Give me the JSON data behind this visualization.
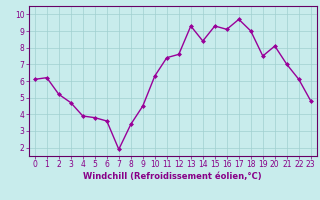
{
  "x": [
    0,
    1,
    2,
    3,
    4,
    5,
    6,
    7,
    8,
    9,
    10,
    11,
    12,
    13,
    14,
    15,
    16,
    17,
    18,
    19,
    20,
    21,
    22,
    23
  ],
  "y": [
    6.1,
    6.2,
    5.2,
    4.7,
    3.9,
    3.8,
    3.6,
    1.9,
    3.4,
    4.5,
    6.3,
    7.4,
    7.6,
    9.3,
    8.4,
    9.3,
    9.1,
    9.7,
    9.0,
    7.5,
    8.1,
    7.0,
    6.1,
    4.8
  ],
  "line_color": "#990099",
  "marker": "D",
  "marker_size": 2,
  "background_color": "#c8ecec",
  "grid_color": "#a0d0d0",
  "xlabel": "Windchill (Refroidissement éolien,°C)",
  "ylabel": "",
  "xlim": [
    -0.5,
    23.5
  ],
  "ylim": [
    1.5,
    10.5
  ],
  "yticks": [
    2,
    3,
    4,
    5,
    6,
    7,
    8,
    9,
    10
  ],
  "xticks": [
    0,
    1,
    2,
    3,
    4,
    5,
    6,
    7,
    8,
    9,
    10,
    11,
    12,
    13,
    14,
    15,
    16,
    17,
    18,
    19,
    20,
    21,
    22,
    23
  ],
  "tick_color": "#880088",
  "label_color": "#880088",
  "axis_color": "#660066",
  "font_size": 5.5,
  "xlabel_fontsize": 6,
  "linewidth": 1.0
}
